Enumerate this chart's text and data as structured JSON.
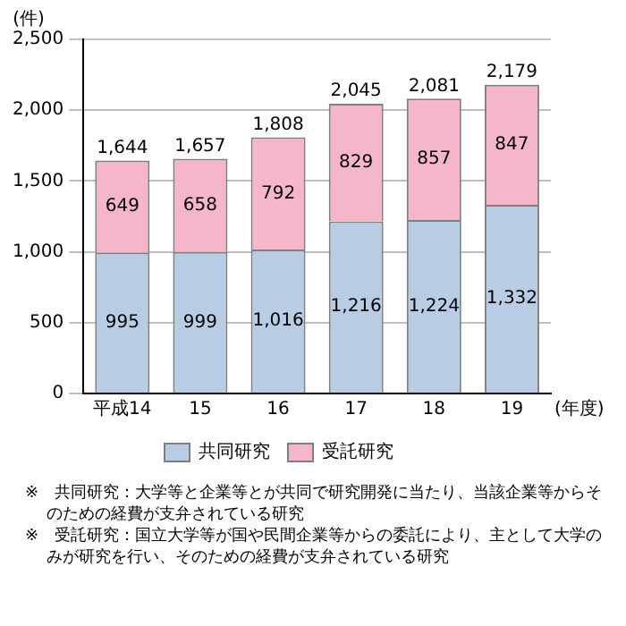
{
  "chart_data": {
    "type": "bar",
    "stacked": true,
    "ylabel": "(件)",
    "xlabel": "(年度)",
    "categories": [
      "平成14",
      "15",
      "16",
      "17",
      "18",
      "19"
    ],
    "series": [
      {
        "name": "共同研究",
        "color": "#b8cce4",
        "values": [
          995,
          999,
          1016,
          1216,
          1224,
          1332
        ],
        "value_labels": [
          "995",
          "999",
          "1,016",
          "1,216",
          "1,224",
          "1,332"
        ]
      },
      {
        "name": "受託研究",
        "color": "#f4b6c8",
        "values": [
          649,
          658,
          792,
          829,
          857,
          847
        ],
        "value_labels": [
          "649",
          "658",
          "792",
          "829",
          "857",
          "847"
        ]
      }
    ],
    "totals": [
      "1,644",
      "1,657",
      "1,808",
      "2,045",
      "2,081",
      "2,179"
    ],
    "ylim": [
      0,
      2500
    ],
    "yticks": [
      {
        "value": 0,
        "label": "0"
      },
      {
        "value": 500,
        "label": "500"
      },
      {
        "value": 1000,
        "label": "1,000"
      },
      {
        "value": 1500,
        "label": "1,500"
      },
      {
        "value": 2000,
        "label": "2,000"
      },
      {
        "value": 2500,
        "label": "2,500"
      }
    ],
    "grid": "y",
    "legend": "bottom",
    "annotations": [
      "※　共同研究：大学等と企業等とが共同で研究開発に当たり、当該企業等からそのための経費が支弁されている研究",
      "※　受託研究：国立大学等が国や民間企業等からの委託により、主として大学のみが研究を行い、そのための経費が支弁されている研究"
    ]
  }
}
